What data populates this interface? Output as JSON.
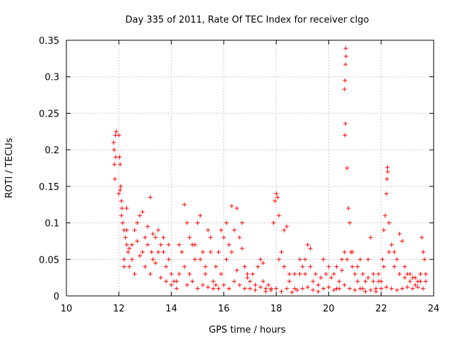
{
  "chart_data": {
    "type": "scatter",
    "title": "Day 335 of 2011, Rate Of TEC Index for receiver clgo",
    "xlabel": "GPS time / hours",
    "ylabel": "ROTI / TECUs",
    "xlim": [
      10,
      24
    ],
    "ylim": [
      0,
      0.35
    ],
    "x_ticks": [
      "10",
      "12",
      "14",
      "16",
      "18",
      "20",
      "22",
      "24"
    ],
    "y_ticks": [
      "0",
      "0.05",
      "0.1",
      "0.15",
      "0.2",
      "0.25",
      "0.3",
      "0.35"
    ],
    "grid": true,
    "marker": "plus",
    "color": "#ff0000",
    "series": [
      {
        "points": [
          [
            11.8,
            0.21
          ],
          [
            11.82,
            0.2
          ],
          [
            11.83,
            0.18
          ],
          [
            11.85,
            0.16
          ],
          [
            11.87,
            0.22
          ],
          [
            11.9,
            0.225
          ],
          [
            11.88,
            0.19
          ],
          [
            12.0,
            0.22
          ],
          [
            12.03,
            0.19
          ],
          [
            12.05,
            0.18
          ],
          [
            12.07,
            0.15
          ],
          [
            12.1,
            0.13
          ],
          [
            12.12,
            0.12
          ],
          [
            12.15,
            0.1
          ],
          [
            12.0,
            0.14
          ],
          [
            12.05,
            0.145
          ],
          [
            12.1,
            0.11
          ],
          [
            12.2,
            0.09
          ],
          [
            12.25,
            0.08
          ],
          [
            12.3,
            0.07
          ],
          [
            12.2,
            0.05
          ],
          [
            12.3,
            0.12
          ],
          [
            12.35,
            0.06
          ],
          [
            12.4,
            0.04
          ],
          [
            12.5,
            0.05
          ],
          [
            12.6,
            0.09
          ],
          [
            12.7,
            0.1
          ],
          [
            12.8,
            0.11
          ],
          [
            12.9,
            0.115
          ],
          [
            13.0,
            0.08
          ],
          [
            13.1,
            0.07
          ],
          [
            13.2,
            0.135
          ],
          [
            13.25,
            0.06
          ],
          [
            13.3,
            0.05
          ],
          [
            13.4,
            0.08
          ],
          [
            13.5,
            0.09
          ],
          [
            13.6,
            0.07
          ],
          [
            13.7,
            0.06
          ],
          [
            13.8,
            0.04
          ],
          [
            13.9,
            0.07
          ],
          [
            14.0,
            0.03
          ],
          [
            14.1,
            0.02
          ],
          [
            14.2,
            0.02
          ],
          [
            14.3,
            0.03
          ],
          [
            14.4,
            0.06
          ],
          [
            14.5,
            0.125
          ],
          [
            14.6,
            0.1
          ],
          [
            14.7,
            0.08
          ],
          [
            14.8,
            0.07
          ],
          [
            14.9,
            0.05
          ],
          [
            15.0,
            0.1
          ],
          [
            15.1,
            0.11
          ],
          [
            15.2,
            0.06
          ],
          [
            15.3,
            0.04
          ],
          [
            15.4,
            0.09
          ],
          [
            15.5,
            0.08
          ],
          [
            15.6,
            0.02
          ],
          [
            15.7,
            0.015
          ],
          [
            15.8,
            0.06
          ],
          [
            15.9,
            0.09
          ],
          [
            16.0,
            0.08
          ],
          [
            16.1,
            0.1
          ],
          [
            16.2,
            0.07
          ],
          [
            16.3,
            0.123
          ],
          [
            16.4,
            0.09
          ],
          [
            16.5,
            0.12
          ],
          [
            16.6,
            0.08
          ],
          [
            16.7,
            0.1
          ],
          [
            16.8,
            0.04
          ],
          [
            16.9,
            0.03
          ],
          [
            17.0,
            0.02
          ],
          [
            17.2,
            0.015
          ],
          [
            17.4,
            0.05
          ],
          [
            17.5,
            0.045
          ],
          [
            17.6,
            0.01
          ],
          [
            17.8,
            0.01
          ],
          [
            17.9,
            0.1
          ],
          [
            17.95,
            0.13
          ],
          [
            18.0,
            0.14
          ],
          [
            18.05,
            0.135
          ],
          [
            18.1,
            0.11
          ],
          [
            18.2,
            0.06
          ],
          [
            18.3,
            0.09
          ],
          [
            18.4,
            0.095
          ],
          [
            18.5,
            0.02
          ],
          [
            18.7,
            0.01
          ],
          [
            18.9,
            0.05
          ],
          [
            19.0,
            0.04
          ],
          [
            19.1,
            0.03
          ],
          [
            19.2,
            0.07
          ],
          [
            19.3,
            0.065
          ],
          [
            19.4,
            0.02
          ],
          [
            19.6,
            0.015
          ],
          [
            19.8,
            0.05
          ],
          [
            20.0,
            0.04
          ],
          [
            20.2,
            0.03
          ],
          [
            20.3,
            0.01
          ],
          [
            20.4,
            0.02
          ],
          [
            20.5,
            0.05
          ],
          [
            20.6,
            0.06
          ],
          [
            20.62,
            0.22
          ],
          [
            20.64,
            0.236
          ],
          [
            20.6,
            0.283
          ],
          [
            20.62,
            0.295
          ],
          [
            20.64,
            0.317
          ],
          [
            20.66,
            0.328
          ],
          [
            20.65,
            0.339
          ],
          [
            20.7,
            0.175
          ],
          [
            20.75,
            0.12
          ],
          [
            20.8,
            0.1
          ],
          [
            20.85,
            0.06
          ],
          [
            20.9,
            0.04
          ],
          [
            21.0,
            0.03
          ],
          [
            21.1,
            0.02
          ],
          [
            21.2,
            0.05
          ],
          [
            21.3,
            0.01
          ],
          [
            21.4,
            0.02
          ],
          [
            21.5,
            0.05
          ],
          [
            21.6,
            0.08
          ],
          [
            21.7,
            0.03
          ],
          [
            21.8,
            0.01
          ],
          [
            21.9,
            0.03
          ],
          [
            22.0,
            0.02
          ],
          [
            22.05,
            0.05
          ],
          [
            22.1,
            0.09
          ],
          [
            22.15,
            0.11
          ],
          [
            22.2,
            0.14
          ],
          [
            22.22,
            0.16
          ],
          [
            22.24,
            0.176
          ],
          [
            22.25,
            0.17
          ],
          [
            22.3,
            0.1
          ],
          [
            22.4,
            0.07
          ],
          [
            22.5,
            0.06
          ],
          [
            22.6,
            0.05
          ],
          [
            22.7,
            0.085
          ],
          [
            22.8,
            0.075
          ],
          [
            22.9,
            0.04
          ],
          [
            23.0,
            0.03
          ],
          [
            23.1,
            0.02
          ],
          [
            23.2,
            0.025
          ],
          [
            23.3,
            0.015
          ],
          [
            23.4,
            0.02
          ],
          [
            23.5,
            0.03
          ],
          [
            23.55,
            0.08
          ],
          [
            23.6,
            0.06
          ],
          [
            23.65,
            0.05
          ],
          [
            23.7,
            0.02
          ],
          [
            12.2,
            0.04
          ],
          [
            12.4,
            0.065
          ],
          [
            12.6,
            0.03
          ],
          [
            12.8,
            0.055
          ],
          [
            13.0,
            0.04
          ],
          [
            13.2,
            0.03
          ],
          [
            13.4,
            0.045
          ],
          [
            13.6,
            0.025
          ],
          [
            13.8,
            0.02
          ],
          [
            14.0,
            0.015
          ],
          [
            14.2,
            0.01
          ],
          [
            14.6,
            0.015
          ],
          [
            14.8,
            0.02
          ],
          [
            15.0,
            0.01
          ],
          [
            15.2,
            0.015
          ],
          [
            15.4,
            0.012
          ],
          [
            15.6,
            0.01
          ],
          [
            15.8,
            0.01
          ],
          [
            16.0,
            0.015
          ],
          [
            16.2,
            0.01
          ],
          [
            16.4,
            0.02
          ],
          [
            16.6,
            0.015
          ],
          [
            16.8,
            0.01
          ],
          [
            17.0,
            0.01
          ],
          [
            17.2,
            0.008
          ],
          [
            17.4,
            0.012
          ],
          [
            17.6,
            0.006
          ],
          [
            17.8,
            0.008
          ],
          [
            18.0,
            0.01
          ],
          [
            18.2,
            0.006
          ],
          [
            18.4,
            0.01
          ],
          [
            18.6,
            0.005
          ],
          [
            18.8,
            0.008
          ],
          [
            19.0,
            0.01
          ],
          [
            19.2,
            0.012
          ],
          [
            19.4,
            0.008
          ],
          [
            19.6,
            0.006
          ],
          [
            19.8,
            0.01
          ],
          [
            20.0,
            0.012
          ],
          [
            20.2,
            0.008
          ],
          [
            20.4,
            0.01
          ],
          [
            20.6,
            0.015
          ],
          [
            20.8,
            0.01
          ],
          [
            21.0,
            0.008
          ],
          [
            21.2,
            0.01
          ],
          [
            21.4,
            0.006
          ],
          [
            21.6,
            0.008
          ],
          [
            21.8,
            0.006
          ],
          [
            22.0,
            0.01
          ],
          [
            22.2,
            0.012
          ],
          [
            22.4,
            0.01
          ],
          [
            22.6,
            0.008
          ],
          [
            22.8,
            0.01
          ],
          [
            23.0,
            0.012
          ],
          [
            23.2,
            0.01
          ],
          [
            23.4,
            0.012
          ],
          [
            23.6,
            0.01
          ],
          [
            12.3,
            0.09
          ],
          [
            12.5,
            0.07
          ],
          [
            12.7,
            0.075
          ],
          [
            12.9,
            0.06
          ],
          [
            13.1,
            0.095
          ],
          [
            13.3,
            0.085
          ],
          [
            13.5,
            0.06
          ],
          [
            13.7,
            0.08
          ],
          [
            13.9,
            0.05
          ],
          [
            14.3,
            0.07
          ],
          [
            14.5,
            0.04
          ],
          [
            14.7,
            0.03
          ],
          [
            14.9,
            0.07
          ],
          [
            15.1,
            0.05
          ],
          [
            15.3,
            0.03
          ],
          [
            15.5,
            0.06
          ],
          [
            15.7,
            0.04
          ],
          [
            15.9,
            0.03
          ],
          [
            16.1,
            0.05
          ],
          [
            16.3,
            0.06
          ],
          [
            16.5,
            0.035
          ],
          [
            16.7,
            0.065
          ],
          [
            16.9,
            0.025
          ],
          [
            17.1,
            0.03
          ],
          [
            17.3,
            0.04
          ],
          [
            17.5,
            0.02
          ],
          [
            17.7,
            0.015
          ],
          [
            18.1,
            0.05
          ],
          [
            18.3,
            0.04
          ],
          [
            18.5,
            0.03
          ],
          [
            18.7,
            0.03
          ],
          [
            18.9,
            0.03
          ],
          [
            19.1,
            0.05
          ],
          [
            19.3,
            0.04
          ],
          [
            19.5,
            0.03
          ],
          [
            19.7,
            0.025
          ],
          [
            19.9,
            0.03
          ],
          [
            20.1,
            0.025
          ],
          [
            20.3,
            0.04
          ],
          [
            20.5,
            0.035
          ],
          [
            20.7,
            0.05
          ],
          [
            20.9,
            0.06
          ],
          [
            21.1,
            0.04
          ],
          [
            21.3,
            0.03
          ],
          [
            21.5,
            0.025
          ],
          [
            21.7,
            0.02
          ],
          [
            21.9,
            0.02
          ],
          [
            22.1,
            0.04
          ],
          [
            22.3,
            0.06
          ],
          [
            22.5,
            0.04
          ],
          [
            22.7,
            0.03
          ],
          [
            22.9,
            0.025
          ],
          [
            23.1,
            0.03
          ],
          [
            23.3,
            0.025
          ],
          [
            23.5,
            0.02
          ],
          [
            23.7,
            0.03
          ]
        ]
      }
    ]
  }
}
